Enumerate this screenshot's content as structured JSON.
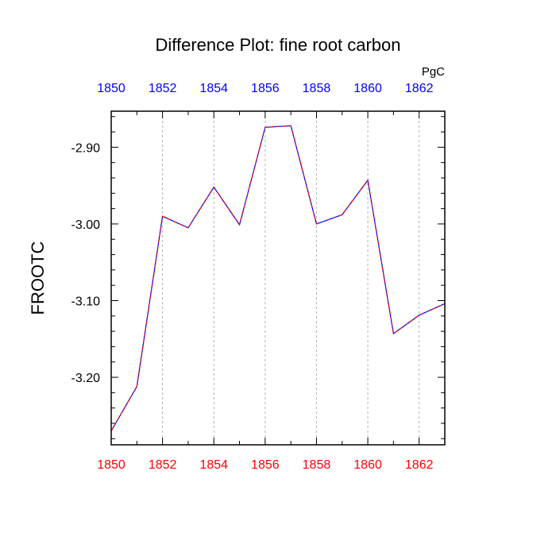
{
  "chart_data": {
    "type": "line",
    "title": "Difference Plot: fine root carbon",
    "units": "PgC",
    "ylabel": "FROOTC",
    "xlabel": "",
    "xlim": [
      1850,
      1863
    ],
    "ylim": [
      -3.288,
      -2.853
    ],
    "x_ticks": [
      1850,
      1852,
      1854,
      1856,
      1858,
      1860,
      1862
    ],
    "x_tick_labels": [
      "1850",
      "1852",
      "1854",
      "1856",
      "1858",
      "1860",
      "1862"
    ],
    "y_ticks": [
      -2.9,
      -3.0,
      -3.1,
      -3.2
    ],
    "y_tick_labels": [
      "-2.90",
      "-3.00",
      "-3.10",
      "-3.20"
    ],
    "grid": {
      "x": true,
      "y": false
    },
    "series": [
      {
        "x": [
          1850,
          1851,
          1852,
          1853,
          1854,
          1855,
          1856,
          1857,
          1858,
          1859,
          1860,
          1861,
          1862,
          1863
        ],
        "values": [
          -3.27,
          -3.212,
          -2.99,
          -3.005,
          -2.952,
          -3.001,
          -2.874,
          -2.872,
          -3.0,
          -2.988,
          -2.943,
          -3.143,
          -3.119,
          -3.104
        ],
        "color": "#0000ff",
        "overlay_color": "#ff0000",
        "style": "dashed"
      }
    ],
    "colors": {
      "bottom_ticks": "#ff0000",
      "top_ticks": "#0000ff",
      "frame": "#000000",
      "grid": "#b0b0b0"
    }
  }
}
